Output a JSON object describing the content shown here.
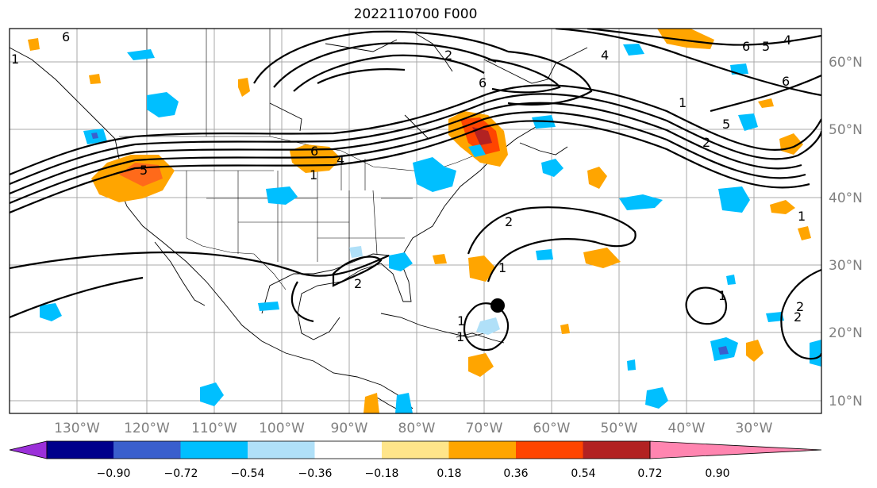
{
  "title": "2022110700 F000",
  "map": {
    "lon_labels": [
      "130°W",
      "120°W",
      "110°W",
      "100°W",
      "90°W",
      "80°W",
      "70°W",
      "60°W",
      "50°W",
      "40°W",
      "30°W"
    ],
    "lat_labels": [
      "60°N",
      "50°N",
      "40°N",
      "30°N",
      "20°N",
      "10°N"
    ],
    "contour_labels": [
      "6",
      "5",
      "4",
      "2",
      "6",
      "1",
      "6",
      "4",
      "6",
      "5",
      "5",
      "4",
      "2",
      "1",
      "2",
      "1",
      "2",
      "1",
      "1",
      "2",
      "1",
      "1",
      "2",
      "6",
      "1"
    ],
    "storm_marker": "black-dot",
    "colors": {
      "purple": "#9b30d9",
      "navy": "#00008b",
      "blue": "#3a5fcd",
      "cyan": "#00bfff",
      "lightblue": "#b0e0f8",
      "white": "#ffffff",
      "yellow": "#ffe58a",
      "orange": "#ffa500",
      "redorange": "#ff4500",
      "darkred": "#b22222",
      "pink": "#ff85b0"
    }
  },
  "colorbar": {
    "ticks": [
      "−0.90",
      "−0.72",
      "−0.54",
      "−0.36",
      "−0.18",
      "0.18",
      "0.36",
      "0.54",
      "0.72",
      "0.90"
    ],
    "bins": [
      "#9b30d9",
      "#00008b",
      "#3a5fcd",
      "#00bfff",
      "#b0e0f8",
      "#ffffff",
      "#ffe58a",
      "#ffa500",
      "#ff4500",
      "#b22222",
      "#ff85b0"
    ]
  }
}
